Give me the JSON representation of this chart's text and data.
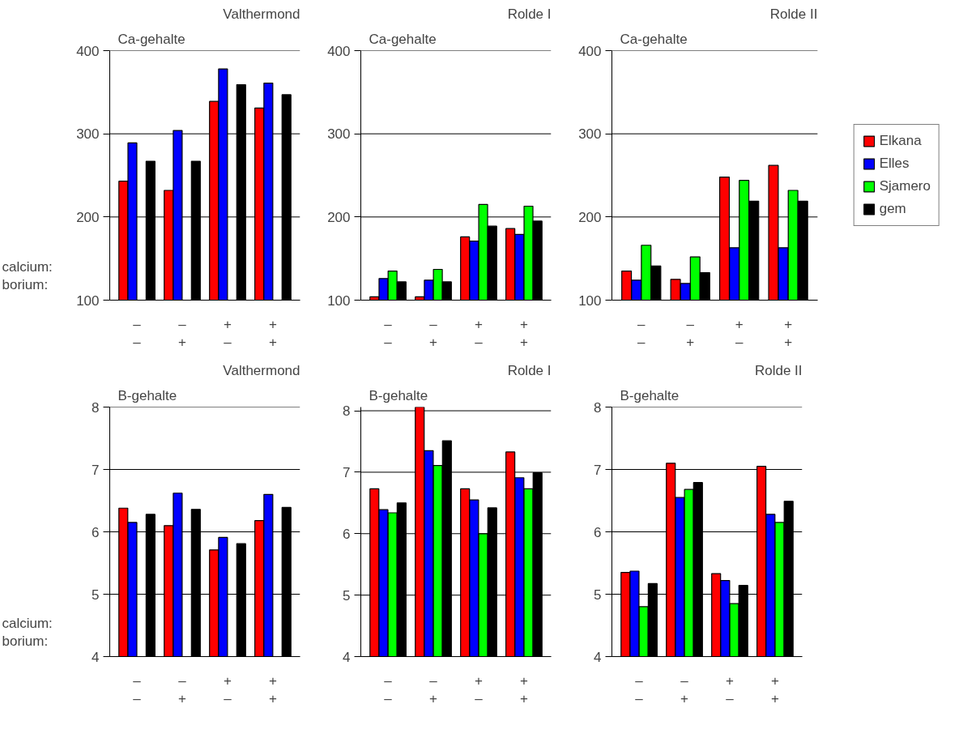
{
  "chart_data": [
    {
      "type": "bar",
      "title": "Valthermond",
      "ylabel": "Ca-gehalte",
      "categories": [
        "–\n–",
        "–\n+",
        "+\n–",
        "+\n+"
      ],
      "ylim": [
        100,
        400
      ],
      "yticks": [
        100,
        200,
        300,
        400
      ],
      "grid": "y",
      "annotations": [
        "calcium:",
        "borium:"
      ],
      "series": [
        {
          "color": "#ff0000",
          "values": [
            243,
            232,
            339,
            331
          ]
        },
        {
          "color": "#0000ff",
          "values": [
            289,
            304,
            378,
            361
          ]
        },
        {
          "color": "#00ff00",
          "values": [
            null,
            null,
            null,
            null
          ]
        },
        {
          "color": "#000000",
          "values": [
            267,
            267,
            359,
            347
          ]
        }
      ]
    },
    {
      "type": "bar",
      "title": "Rolde I",
      "ylabel": "Ca-gehalte",
      "categories": [
        "–\n–",
        "–\n+",
        "+\n–",
        "+\n+"
      ],
      "ylim": [
        100,
        400
      ],
      "yticks": [
        100,
        200,
        300,
        400
      ],
      "grid": "y",
      "series": [
        {
          "color": "#ff0000",
          "values": [
            104,
            104,
            176,
            186
          ]
        },
        {
          "color": "#0000ff",
          "values": [
            126,
            124,
            171,
            179
          ]
        },
        {
          "color": "#00ff00",
          "values": [
            135,
            137,
            215,
            213
          ]
        },
        {
          "color": "#000000",
          "values": [
            122,
            122,
            189,
            195
          ]
        }
      ]
    },
    {
      "type": "bar",
      "title": "Rolde II",
      "ylabel": "Ca-gehalte",
      "categories": [
        "–\n–",
        "–\n+",
        "+\n–",
        "+\n+"
      ],
      "ylim": [
        100,
        400
      ],
      "yticks": [
        100,
        200,
        300,
        400
      ],
      "grid": "y",
      "legend": "right",
      "series": [
        {
          "name": "Elkana",
          "color": "#ff0000",
          "values": [
            135,
            125,
            248,
            262
          ]
        },
        {
          "name": "Elles",
          "color": "#0000ff",
          "values": [
            124,
            120,
            163,
            163
          ]
        },
        {
          "name": "Sjamero",
          "color": "#00ff00",
          "values": [
            166,
            152,
            244,
            232
          ]
        },
        {
          "name": "gem",
          "color": "#000000",
          "values": [
            141,
            133,
            219,
            219
          ]
        }
      ]
    },
    {
      "type": "bar",
      "title": "Valthermond",
      "ylabel": "B-gehalte",
      "categories": [
        "–\n–",
        "–\n+",
        "+\n–",
        "+\n+"
      ],
      "ylim": [
        4,
        8
      ],
      "yticks": [
        4,
        5,
        6,
        7,
        8
      ],
      "grid": "y",
      "annotations": [
        "calcium:",
        "borium:"
      ],
      "series": [
        {
          "color": "#ff0000",
          "values": [
            6.38,
            6.1,
            5.71,
            6.18
          ]
        },
        {
          "color": "#0000ff",
          "values": [
            6.15,
            6.62,
            5.91,
            6.6
          ]
        },
        {
          "color": "#00ff00",
          "values": [
            null,
            null,
            null,
            null
          ]
        },
        {
          "color": "#000000",
          "values": [
            6.28,
            6.36,
            5.81,
            6.39
          ]
        }
      ]
    },
    {
      "type": "bar",
      "title": "Rolde I",
      "ylabel": "B-gehalte",
      "categories": [
        "–\n–",
        "–\n+",
        "+\n–",
        "+\n+"
      ],
      "ylim": [
        4,
        8.06
      ],
      "yticks": [
        4,
        5,
        6,
        7,
        8
      ],
      "grid": "y",
      "series": [
        {
          "color": "#ff0000",
          "values": [
            6.73,
            8.06,
            6.73,
            7.33
          ]
        },
        {
          "color": "#0000ff",
          "values": [
            6.39,
            7.35,
            6.55,
            6.91
          ]
        },
        {
          "color": "#00ff00",
          "values": [
            6.34,
            7.11,
            6.0,
            6.73
          ]
        },
        {
          "color": "#000000",
          "values": [
            6.5,
            7.51,
            6.42,
            6.99
          ]
        }
      ]
    },
    {
      "type": "bar",
      "title": "Rolde II",
      "ylabel": "B-gehalte",
      "categories": [
        "–\n–",
        "–\n+",
        "+\n–",
        "+\n+"
      ],
      "ylim": [
        4,
        8
      ],
      "yticks": [
        4,
        5,
        6,
        7,
        8
      ],
      "grid": "y",
      "series": [
        {
          "color": "#ff0000",
          "values": [
            5.35,
            7.1,
            5.33,
            7.05
          ]
        },
        {
          "color": "#0000ff",
          "values": [
            5.37,
            6.55,
            5.22,
            6.28
          ]
        },
        {
          "color": "#00ff00",
          "values": [
            4.8,
            6.68,
            4.85,
            6.15
          ]
        },
        {
          "color": "#000000",
          "values": [
            5.17,
            6.79,
            5.14,
            6.49
          ]
        }
      ]
    }
  ]
}
